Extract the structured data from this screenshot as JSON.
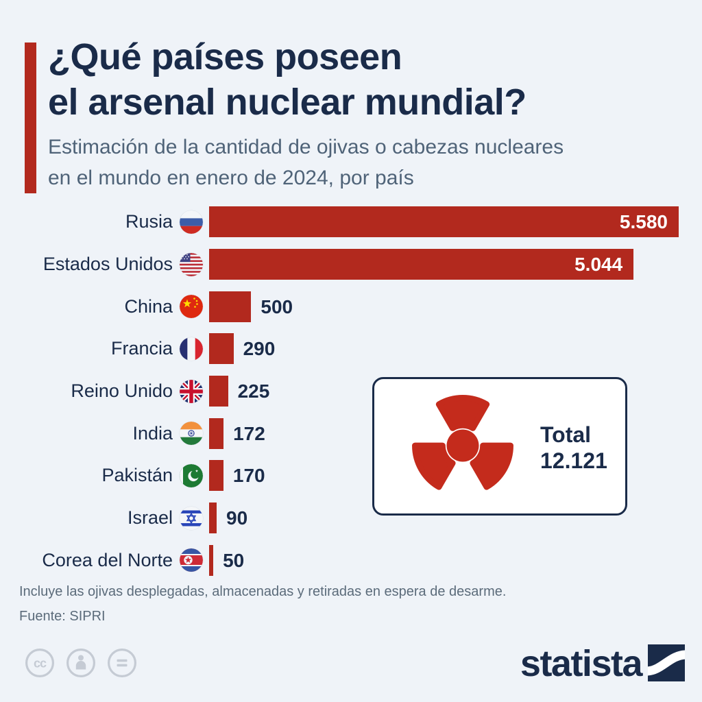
{
  "header": {
    "title_line1": "¿Qué países poseen",
    "title_line2": "el arsenal nuclear mundial?",
    "subtitle_line1": "Estimación de la cantidad de ojivas o cabezas nucleares",
    "subtitle_line2": "en el mundo en enero de 2024, por país"
  },
  "chart_data": {
    "type": "bar",
    "orientation": "horizontal",
    "title": "¿Qué países poseen el arsenal nuclear mundial?",
    "subtitle": "Estimación de la cantidad de ojivas o cabezas nucleares en el mundo en enero de 2024, por país",
    "categories": [
      "Rusia",
      "Estados Unidos",
      "China",
      "Francia",
      "Reino Unido",
      "India",
      "Pakistán",
      "Israel",
      "Corea del Norte"
    ],
    "values": [
      5580,
      5044,
      500,
      290,
      225,
      172,
      170,
      90,
      50
    ],
    "value_labels": [
      "5.580",
      "5.044",
      "500",
      "290",
      "225",
      "172",
      "170",
      "90",
      "50"
    ],
    "flag_icons": [
      "russia-flag-icon",
      "usa-flag-icon",
      "china-flag-icon",
      "france-flag-icon",
      "uk-flag-icon",
      "india-flag-icon",
      "pakistan-flag-icon",
      "israel-flag-icon",
      "north-korea-flag-icon"
    ],
    "xlim": [
      0,
      5580
    ],
    "grid": false,
    "legend": false,
    "bar_color": "#B2291E"
  },
  "total_box": {
    "label": "Total",
    "value": "12.121",
    "icon": "radiation-icon",
    "icon_color": "#C42B1C"
  },
  "footnotes": {
    "note": "Incluye las ojivas desplegadas, almacenadas y retiradas en espera de desarme.",
    "source": "Fuente: SIPRI"
  },
  "footer": {
    "license_icons": [
      "cc-icon",
      "cc-by-icon",
      "cc-nd-icon"
    ],
    "brand": "statista"
  },
  "colors": {
    "background": "#EFF3F8",
    "bar": "#B2291E",
    "title": "#1A2B49",
    "subtitle": "#4F6378",
    "footnote": "#5B6B7A",
    "accent": "#B2291E",
    "license_gray": "#C5CBD4"
  }
}
